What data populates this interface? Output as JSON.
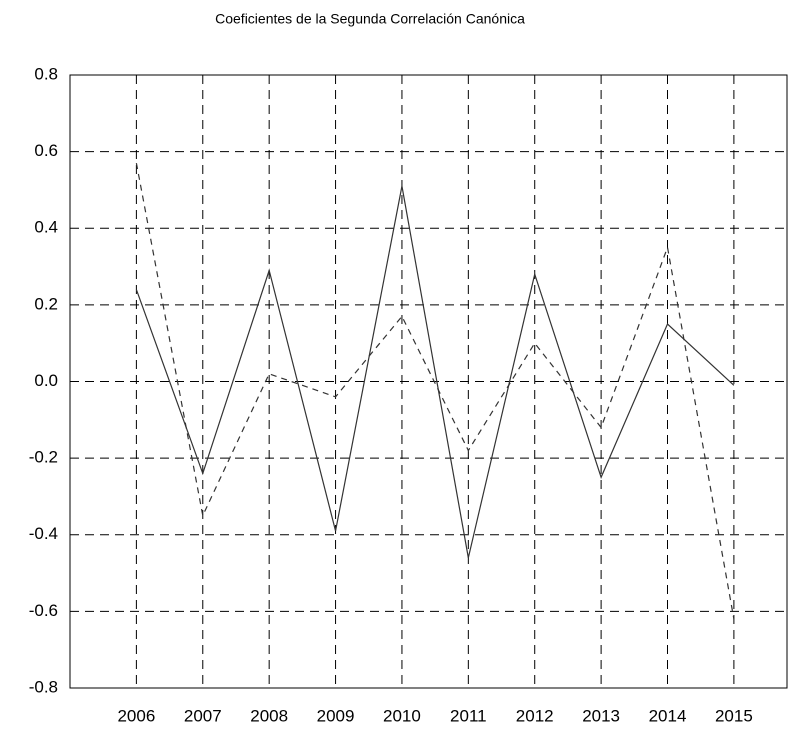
{
  "chart_data": {
    "type": "line",
    "title": "Coeficientes de la Segunda Correlación Canónica",
    "categories": [
      "2006",
      "2007",
      "2008",
      "2009",
      "2010",
      "2011",
      "2012",
      "2013",
      "2014",
      "2015"
    ],
    "series": [
      {
        "color": "#333333",
        "line_style": "solid",
        "values": [
          0.24,
          -0.24,
          0.29,
          -0.39,
          0.51,
          -0.46,
          0.28,
          -0.25,
          0.15,
          -0.01
        ]
      },
      {
        "color": "#333333",
        "line_style": "dashed",
        "values": [
          0.57,
          -0.35,
          0.02,
          -0.04,
          0.17,
          -0.18,
          0.1,
          -0.12,
          0.35,
          -0.62
        ]
      }
    ],
    "ylim": [
      -0.8,
      0.8
    ],
    "yticks": [
      -0.8,
      -0.6,
      -0.4,
      -0.2,
      {
        "value": 0,
        "label": "0.0"
      },
      0.2,
      0.4,
      0.6,
      0.8
    ],
    "grid": true,
    "grid_style": "dashed"
  }
}
